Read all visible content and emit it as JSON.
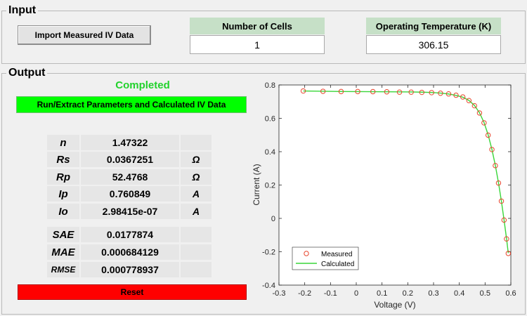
{
  "input_panel": {
    "title": "Input",
    "import_button": "Import Measured IV Data",
    "cells": {
      "label": "Number of Cells",
      "value": "1"
    },
    "temperature": {
      "label": "Operating Temperature (K)",
      "value": "306.15"
    }
  },
  "output_panel": {
    "title": "Output",
    "status": "Completed",
    "run_button": "Run/Extract Parameters and Calculated IV Data",
    "reset_button": "Reset",
    "params": [
      {
        "label": "n",
        "value": "1.47322",
        "unit": ""
      },
      {
        "label": "Rs",
        "value": "0.0367251",
        "unit": "Ω"
      },
      {
        "label": "Rp",
        "value": "52.4768",
        "unit": "Ω"
      },
      {
        "label": "Ip",
        "value": "0.760849",
        "unit": "A"
      },
      {
        "label": "Io",
        "value": "2.98415e-07",
        "unit": "A"
      }
    ],
    "errors": [
      {
        "label": "SAE",
        "value": "0.0177874"
      },
      {
        "label": "MAE",
        "value": "0.000684129"
      },
      {
        "label": "RMSE",
        "value": "0.000778937"
      }
    ]
  },
  "colors": {
    "status": "#22d22c",
    "run_button": "#00ff00",
    "reset_button": "#ff0000",
    "header": "#c6e0c7"
  },
  "chart_data": {
    "type": "line",
    "xlabel": "Voltage (V)",
    "ylabel": "Current (A)",
    "xlim": [
      -0.3,
      0.6
    ],
    "ylim": [
      -0.4,
      0.8
    ],
    "xticks": [
      "-0.3",
      "-0.2",
      "-0.1",
      "0",
      "0.1",
      "0.2",
      "0.3",
      "0.4",
      "0.5",
      "0.6"
    ],
    "yticks": [
      "-0.4",
      "-0.2",
      "0",
      "0.2",
      "0.4",
      "0.6",
      "0.8"
    ],
    "legend_position": "bottom-left",
    "series": [
      {
        "name": "Measured",
        "marker": "circle",
        "color": "#e8462e",
        "x": [
          -0.2057,
          -0.1291,
          -0.0588,
          0.0057,
          0.0646,
          0.1185,
          0.1678,
          0.2132,
          0.2545,
          0.2924,
          0.3269,
          0.3585,
          0.3873,
          0.4137,
          0.4373,
          0.459,
          0.4784,
          0.496,
          0.5119,
          0.5265,
          0.5398,
          0.5521,
          0.5633,
          0.5736,
          0.5833,
          0.59
        ],
        "y": [
          0.764,
          0.762,
          0.7605,
          0.7605,
          0.76,
          0.759,
          0.757,
          0.757,
          0.7555,
          0.754,
          0.7505,
          0.7465,
          0.7385,
          0.728,
          0.7065,
          0.6755,
          0.632,
          0.573,
          0.499,
          0.413,
          0.3165,
          0.212,
          0.1035,
          -0.01,
          -0.123,
          -0.21
        ]
      },
      {
        "name": "Calculated",
        "marker": "line",
        "color": "#39d639",
        "x": [
          -0.2057,
          -0.1291,
          -0.0588,
          0.0057,
          0.0646,
          0.1185,
          0.1678,
          0.2132,
          0.2545,
          0.2924,
          0.3269,
          0.3585,
          0.3873,
          0.4137,
          0.4373,
          0.459,
          0.4784,
          0.496,
          0.5119,
          0.5265,
          0.5398,
          0.5521,
          0.5633,
          0.5736,
          0.5833,
          0.59
        ],
        "y": [
          0.7638,
          0.7622,
          0.7608,
          0.7602,
          0.7597,
          0.7591,
          0.7586,
          0.758,
          0.7569,
          0.7551,
          0.7513,
          0.7458,
          0.7376,
          0.7266,
          0.7074,
          0.677,
          0.6331,
          0.5748,
          0.501,
          0.414,
          0.318,
          0.213,
          0.104,
          -0.009,
          -0.121,
          -0.208
        ]
      }
    ]
  }
}
